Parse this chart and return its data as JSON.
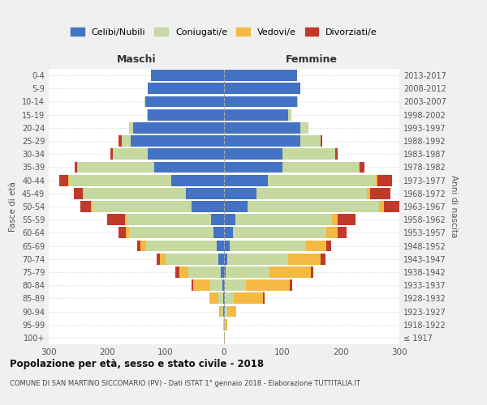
{
  "age_groups": [
    "100+",
    "95-99",
    "90-94",
    "85-89",
    "80-84",
    "75-79",
    "70-74",
    "65-69",
    "60-64",
    "55-59",
    "50-54",
    "45-49",
    "40-44",
    "35-39",
    "30-34",
    "25-29",
    "20-24",
    "15-19",
    "10-14",
    "5-9",
    "0-4"
  ],
  "birth_years": [
    "≤ 1917",
    "1918-1922",
    "1923-1927",
    "1928-1932",
    "1933-1937",
    "1938-1942",
    "1943-1947",
    "1948-1952",
    "1953-1957",
    "1958-1962",
    "1963-1967",
    "1968-1972",
    "1973-1977",
    "1978-1982",
    "1983-1987",
    "1988-1992",
    "1993-1997",
    "1998-2002",
    "2003-2007",
    "2008-2012",
    "2013-2017"
  ],
  "colors": {
    "celibi": "#4472C4",
    "coniugati": "#C5D9A0",
    "vedovi": "#F4B942",
    "divorziati": "#C0392B"
  },
  "maschi": {
    "celibi": [
      0,
      0,
      1,
      2,
      3,
      6,
      10,
      13,
      18,
      22,
      55,
      65,
      90,
      120,
      130,
      160,
      155,
      130,
      135,
      130,
      125
    ],
    "coniugati": [
      0,
      1,
      3,
      8,
      20,
      55,
      90,
      120,
      145,
      145,
      170,
      175,
      175,
      130,
      60,
      15,
      8,
      2,
      1,
      0,
      0
    ],
    "vedovi": [
      0,
      1,
      5,
      15,
      30,
      15,
      10,
      10,
      5,
      3,
      3,
      2,
      2,
      1,
      0,
      0,
      0,
      0,
      0,
      0,
      0
    ],
    "divorziati": [
      0,
      0,
      0,
      0,
      3,
      8,
      5,
      5,
      12,
      30,
      18,
      15,
      15,
      5,
      5,
      5,
      0,
      0,
      0,
      0,
      0
    ]
  },
  "femmine": {
    "celibi": [
      0,
      0,
      1,
      2,
      2,
      3,
      5,
      10,
      15,
      20,
      40,
      55,
      75,
      100,
      100,
      130,
      130,
      110,
      125,
      130,
      125
    ],
    "coniugati": [
      0,
      1,
      5,
      15,
      35,
      75,
      105,
      130,
      160,
      165,
      225,
      190,
      185,
      130,
      90,
      35,
      15,
      5,
      2,
      0,
      0
    ],
    "vedovi": [
      1,
      4,
      15,
      50,
      75,
      70,
      55,
      35,
      20,
      10,
      8,
      5,
      3,
      2,
      0,
      0,
      0,
      0,
      0,
      0,
      0
    ],
    "divorziati": [
      0,
      0,
      0,
      2,
      5,
      5,
      8,
      8,
      15,
      30,
      45,
      35,
      25,
      8,
      5,
      3,
      0,
      0,
      0,
      0,
      0
    ]
  },
  "title": "Popolazione per età, sesso e stato civile - 2018",
  "subtitle": "COMUNE DI SAN MARTINO SICCOMARIO (PV) - Dati ISTAT 1° gennaio 2018 - Elaborazione TUTTITALIA.IT",
  "xlabel_left": "Maschi",
  "xlabel_right": "Femmine",
  "ylabel_left": "Fasce di età",
  "ylabel_right": "Anni di nascita",
  "xlim": 300,
  "legend_labels": [
    "Celibi/Nubili",
    "Coniugati/e",
    "Vedovi/e",
    "Divorziati/e"
  ],
  "background_color": "#f0f0f0",
  "plot_bg": "#ffffff"
}
